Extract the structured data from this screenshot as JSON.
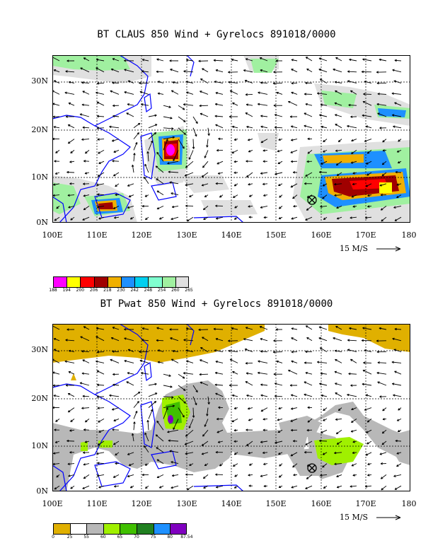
{
  "top_panel": {
    "title": "BT CLAUS 850 Wind + Gyrelocs 891018/0000",
    "lat_labels": [
      "30N",
      "20N",
      "10N",
      "0N"
    ],
    "lon_labels": [
      "100E",
      "110E",
      "120E",
      "130E",
      "140E",
      "150E",
      "160E",
      "170E",
      "180"
    ],
    "vector_scale_label": "15 M/S",
    "colorbar": {
      "colors": [
        "#ff00ff",
        "#ffff00",
        "#ff0000",
        "#a00000",
        "#f0b000",
        "#1e90ff",
        "#00d0f0",
        "#80ffd0",
        "#a0f0a0",
        "#e0e0e0"
      ],
      "labels": [
        "188",
        "194",
        "200",
        "206",
        "218",
        "230",
        "242",
        "248",
        "254",
        "260",
        "265"
      ]
    }
  },
  "bottom_panel": {
    "title": "BT Pwat 850 Wind + Gyrelocs 891018/0000",
    "lat_labels": [
      "30N",
      "20N",
      "10N",
      "0N"
    ],
    "lon_labels": [
      "100E",
      "110E",
      "120E",
      "130E",
      "140E",
      "150E",
      "160E",
      "170E",
      "180"
    ],
    "vector_scale_label": "15 M/S",
    "colorbar": {
      "colors": [
        "#e0b000",
        "#ffffff",
        "#b8b8b8",
        "#a0f000",
        "#40c000",
        "#208020",
        "#1e90ff",
        "#8000c0"
      ],
      "labels": [
        "0",
        "25",
        "55",
        "60",
        "65",
        "70",
        "75",
        "80",
        "87.54"
      ]
    }
  },
  "colors": {
    "coastline": "#0000ff",
    "grid": "#000000"
  }
}
